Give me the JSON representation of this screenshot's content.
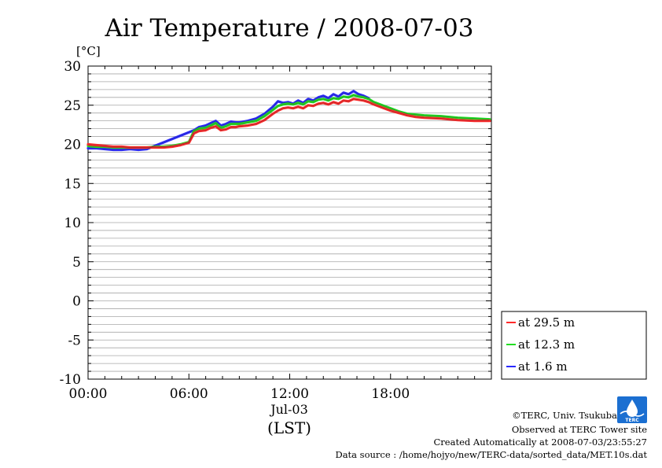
{
  "chart_data": {
    "type": "line",
    "title": "Air Temperature / 2008-07-03",
    "unit_label": "[°C]",
    "xlabel": "(LST)",
    "date_label": "Jul-03",
    "xlim": [
      0,
      24
    ],
    "ylim": [
      -10,
      30
    ],
    "yticks": [
      "30",
      "25",
      "20",
      "15",
      "10",
      "5",
      "0",
      "-5",
      "-10"
    ],
    "xticks": [
      "00:00",
      "06:00",
      "12:00",
      "18:00"
    ],
    "grid": true,
    "legend_position": "right",
    "series": [
      {
        "name": "at 29.5 m",
        "color": "#ff2a2a",
        "x": [
          0,
          0.5,
          1,
          1.5,
          2,
          2.5,
          3,
          3.5,
          4,
          4.5,
          5,
          5.5,
          6,
          6.3,
          6.6,
          7,
          7.3,
          7.6,
          7.9,
          8.2,
          8.5,
          8.8,
          9,
          9.5,
          10,
          10.5,
          11,
          11.3,
          11.6,
          11.9,
          12.2,
          12.5,
          12.8,
          13.1,
          13.4,
          13.7,
          14,
          14.3,
          14.6,
          14.9,
          15.2,
          15.5,
          15.8,
          16.1,
          16.4,
          16.7,
          17,
          17.5,
          18,
          18.5,
          19,
          19.5,
          20,
          21,
          22,
          23,
          23.9
        ],
        "values": [
          20.0,
          19.9,
          19.8,
          19.7,
          19.7,
          19.6,
          19.6,
          19.6,
          19.6,
          19.6,
          19.7,
          19.9,
          20.2,
          21.4,
          21.7,
          21.8,
          22.1,
          22.3,
          21.8,
          21.9,
          22.2,
          22.2,
          22.3,
          22.4,
          22.6,
          23.1,
          23.9,
          24.3,
          24.6,
          24.7,
          24.6,
          24.8,
          24.6,
          25.0,
          24.9,
          25.2,
          25.3,
          25.1,
          25.4,
          25.2,
          25.6,
          25.5,
          25.8,
          25.7,
          25.6,
          25.4,
          25.1,
          24.7,
          24.3,
          24.0,
          23.7,
          23.5,
          23.4,
          23.3,
          23.1,
          23.0,
          23.0
        ]
      },
      {
        "name": "at 12.3 m",
        "color": "#22dd22",
        "x": [
          0,
          0.5,
          1,
          1.5,
          2,
          2.5,
          3,
          3.5,
          4,
          4.5,
          5,
          5.5,
          6,
          6.3,
          6.6,
          7,
          7.3,
          7.6,
          7.9,
          8.2,
          8.5,
          8.8,
          9,
          9.5,
          10,
          10.5,
          11,
          11.3,
          11.6,
          11.9,
          12.2,
          12.5,
          12.8,
          13.1,
          13.4,
          13.7,
          14,
          14.3,
          14.6,
          14.9,
          15.2,
          15.5,
          15.8,
          16.1,
          16.4,
          16.7,
          17,
          17.5,
          18,
          18.5,
          19,
          19.5,
          20,
          21,
          22,
          23,
          23.9
        ],
        "values": [
          19.8,
          19.7,
          19.7,
          19.6,
          19.6,
          19.6,
          19.6,
          19.6,
          19.7,
          19.7,
          19.8,
          20.0,
          20.3,
          21.7,
          22.0,
          22.1,
          22.4,
          22.7,
          22.1,
          22.3,
          22.6,
          22.6,
          22.6,
          22.8,
          23.0,
          23.6,
          24.4,
          24.9,
          25.1,
          25.2,
          25.1,
          25.3,
          25.1,
          25.5,
          25.4,
          25.7,
          25.8,
          25.6,
          25.9,
          25.8,
          26.1,
          26.0,
          26.3,
          26.1,
          26.0,
          25.8,
          25.4,
          25.0,
          24.6,
          24.2,
          23.9,
          23.8,
          23.7,
          23.6,
          23.4,
          23.3,
          23.2
        ]
      },
      {
        "name": "at 1.6 m",
        "color": "#2a2aff",
        "x": [
          0,
          0.5,
          1,
          1.5,
          2,
          2.5,
          3,
          3.5,
          6.3,
          6.6,
          7,
          7.3,
          7.6,
          7.9,
          8.2,
          8.5,
          8.8,
          9,
          9.5,
          10,
          10.5,
          11,
          11.3,
          11.6,
          11.9,
          12.2,
          12.5,
          12.8,
          13.1,
          13.4,
          13.7,
          14,
          14.3,
          14.6,
          14.9,
          15.2,
          15.5,
          15.8,
          16.1,
          16.4,
          16.7
        ],
        "values": [
          19.5,
          19.5,
          19.4,
          19.3,
          19.3,
          19.4,
          19.3,
          19.4,
          21.8,
          22.2,
          22.4,
          22.7,
          23.0,
          22.4,
          22.6,
          22.9,
          22.8,
          22.8,
          23.0,
          23.3,
          23.9,
          24.8,
          25.5,
          25.3,
          25.4,
          25.2,
          25.6,
          25.3,
          25.8,
          25.6,
          26.0,
          26.2,
          25.9,
          26.4,
          26.1,
          26.6,
          26.4,
          26.8,
          26.4,
          26.2,
          25.9
        ]
      }
    ]
  },
  "footer": {
    "copyright": "©TERC, Univ. Tsukuba",
    "site": "Observed at TERC Tower site",
    "created": "Created Automatically at 2008-07-03/23:55:27",
    "source": "Data source : /home/hojyo/new/TERC-data/sorted_data/MET.10s.dat"
  },
  "logo": {
    "text": "TERC"
  }
}
